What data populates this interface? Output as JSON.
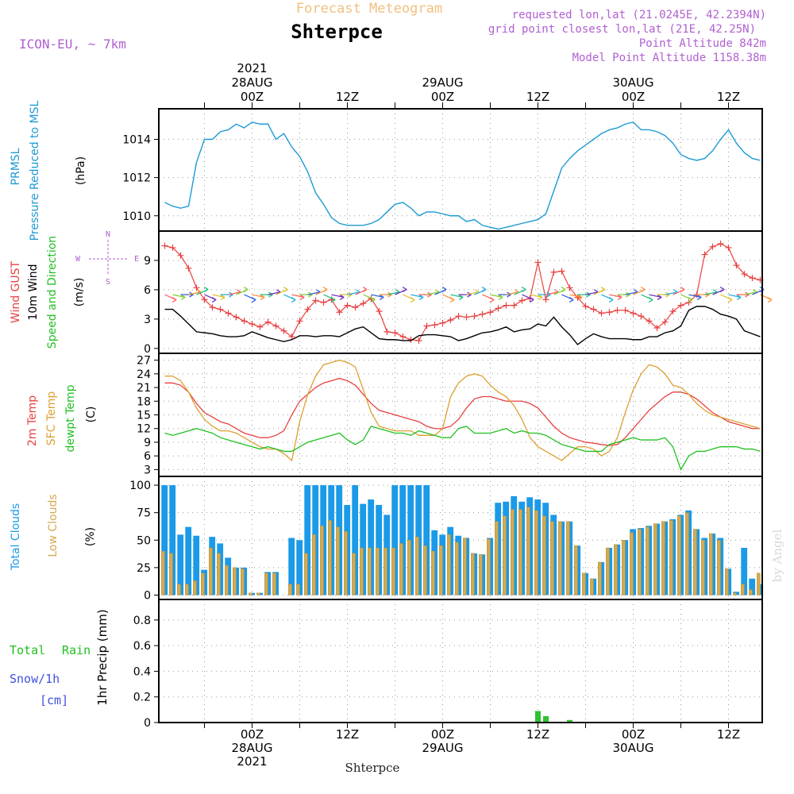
{
  "header": {
    "product": "Forecast Meteogram",
    "station": "Shterpce",
    "model": "ICON-EU, ~ 7km",
    "requested": "requested lon,lat (21.0245E, 42.2394N)",
    "grid_point": "grid point closest lon,lat (21E, 42.25N)",
    "point_alt": "Point Altitude 842m",
    "model_alt": "Model Point Altitude 1158.38m",
    "footer_station": "Shterpce",
    "watermark": "by Angel"
  },
  "colors": {
    "pressure": "#1e9ad6",
    "gust": "#e84040",
    "wind": "#000000",
    "t2m": "#e84040",
    "sfc": "#dca030",
    "dewpt": "#20c020",
    "total_clouds": "#1a9ae8",
    "low_clouds": "#d4aa50",
    "rain": "#30c030",
    "snow": "#4050e0",
    "label_purple": "#b060d0",
    "product": "#f0c080"
  },
  "time_axis": {
    "top_labels": [
      {
        "hour": 0,
        "lines": [
          "2021",
          "28AUG",
          "00Z"
        ]
      },
      {
        "hour": 12,
        "lines": [
          "12Z"
        ]
      },
      {
        "hour": 24,
        "lines": [
          "29AUG",
          "00Z"
        ]
      },
      {
        "hour": 36,
        "lines": [
          "12Z"
        ]
      },
      {
        "hour": 48,
        "lines": [
          "30AUG",
          "00Z"
        ]
      },
      {
        "hour": 60,
        "lines": [
          "12Z"
        ]
      }
    ],
    "bottom_labels": [
      {
        "hour": 0,
        "lines": [
          "00Z",
          "28AUG",
          "2021"
        ]
      },
      {
        "hour": 12,
        "lines": [
          "12Z"
        ]
      },
      {
        "hour": 24,
        "lines": [
          "00Z",
          "29AUG"
        ]
      },
      {
        "hour": 36,
        "lines": [
          "12Z"
        ]
      },
      {
        "hour": 48,
        "lines": [
          "00Z",
          "30AUG"
        ]
      },
      {
        "hour": 60,
        "lines": [
          "12Z"
        ]
      }
    ]
  },
  "panel_labels": {
    "pressure": [
      "PRMSL",
      "Pressure Reduced to MSL",
      "(hPa)"
    ],
    "wind": [
      "Wind GUST",
      "10m Wind",
      "Speed and Direction",
      "(m/s)"
    ],
    "compass": [
      "N",
      "E",
      "S",
      "W"
    ],
    "temp": [
      "2m Temp",
      "SFC Temp",
      "dewpt Temp",
      "(C)"
    ],
    "clouds": [
      "Total Clouds",
      "Low Clouds",
      "(%)"
    ],
    "precip": [
      "Total",
      "Rain",
      "Snow/1h",
      "[cm]",
      "1hr Precip (mm)"
    ]
  },
  "chart_data": [
    {
      "type": "line",
      "name": "PRMSL",
      "xlabel": "hour from 28AUG 00Z",
      "ylabel": "(hPa)",
      "ylim": [
        1009.2,
        1015.6
      ],
      "yticks": [
        1010,
        1012,
        1014
      ],
      "grid": true,
      "x": [
        -11,
        -10,
        -9,
        -8,
        -7,
        -6,
        -5,
        -4,
        -3,
        -2,
        -1,
        0,
        1,
        2,
        3,
        4,
        5,
        6,
        7,
        8,
        9,
        10,
        11,
        12,
        13,
        14,
        15,
        16,
        17,
        18,
        19,
        20,
        21,
        22,
        23,
        24,
        25,
        26,
        27,
        28,
        29,
        30,
        31,
        32,
        33,
        34,
        35,
        36,
        37,
        38,
        39,
        40,
        41,
        42,
        43,
        44,
        45,
        46,
        47,
        48,
        49,
        50,
        51,
        52,
        53,
        54,
        55,
        56,
        57,
        58,
        59,
        60,
        61,
        62,
        63,
        64
      ],
      "series": [
        {
          "values": [
            1010.7,
            1010.5,
            1010.4,
            1010.5,
            1012.8,
            1014.0,
            1014.0,
            1014.4,
            1014.5,
            1014.8,
            1014.6,
            1014.9,
            1014.8,
            1014.8,
            1014.0,
            1014.3,
            1013.6,
            1013.1,
            1012.3,
            1011.2,
            1010.6,
            1009.9,
            1009.6,
            1009.5,
            1009.5,
            1009.5,
            1009.6,
            1009.8,
            1010.2,
            1010.6,
            1010.7,
            1010.4,
            1010.0,
            1010.2,
            1010.2,
            1010.1,
            1010.0,
            1010.0,
            1009.7,
            1009.8,
            1009.5,
            1009.4,
            1009.3,
            1009.4,
            1009.5,
            1009.6,
            1009.7,
            1009.8,
            1010.1,
            1011.3,
            1012.5,
            1013.0,
            1013.4,
            1013.7,
            1014.0,
            1014.3,
            1014.5,
            1014.6,
            1014.8,
            1014.9,
            1014.5,
            1014.5,
            1014.4,
            1014.2,
            1013.8,
            1013.2,
            1013.0,
            1012.9,
            1013.0,
            1013.4,
            1014.0,
            1014.5,
            1013.8,
            1013.3,
            1013.0,
            1012.9
          ]
        }
      ]
    },
    {
      "type": "line",
      "name": "Wind",
      "ylabel": "(m/s)",
      "ylim": [
        -0.5,
        12.0
      ],
      "yticks": [
        0,
        3,
        6,
        9
      ],
      "grid": true,
      "x": [
        -11,
        -10,
        -9,
        -8,
        -7,
        -6,
        -5,
        -4,
        -3,
        -2,
        -1,
        0,
        1,
        2,
        3,
        4,
        5,
        6,
        7,
        8,
        9,
        10,
        11,
        12,
        13,
        14,
        15,
        16,
        17,
        18,
        19,
        20,
        21,
        22,
        23,
        24,
        25,
        26,
        27,
        28,
        29,
        30,
        31,
        32,
        33,
        34,
        35,
        36,
        37,
        38,
        39,
        40,
        41,
        42,
        43,
        44,
        45,
        46,
        47,
        48,
        49,
        50,
        51,
        52,
        53,
        54,
        55,
        56,
        57,
        58,
        59,
        60,
        61,
        62,
        63,
        64
      ],
      "series": [
        {
          "name": "Wind GUST",
          "values": [
            10.5,
            10.3,
            9.5,
            8.2,
            6.2,
            5.0,
            4.2,
            4.0,
            3.6,
            3.2,
            2.8,
            2.5,
            2.2,
            2.7,
            2.3,
            1.8,
            1.2,
            2.8,
            4.0,
            4.9,
            4.7,
            5.0,
            3.7,
            4.4,
            4.2,
            4.6,
            5.1,
            3.8,
            1.7,
            1.6,
            1.2,
            0.9,
            0.8,
            2.3,
            2.4,
            2.6,
            2.9,
            3.3,
            3.2,
            3.3,
            3.5,
            3.7,
            4.1,
            4.4,
            4.4,
            4.9,
            5.1,
            8.8,
            5.0,
            7.8,
            7.9,
            6.2,
            5.2,
            4.3,
            4.0,
            3.6,
            3.7,
            3.9,
            3.9,
            3.6,
            3.3,
            2.8,
            2.1,
            2.7,
            3.8,
            4.4,
            4.7,
            5.5,
            9.6,
            10.4,
            10.7,
            10.3,
            8.5,
            7.6,
            7.2,
            7.0
          ]
        },
        {
          "name": "10m Wind",
          "values": [
            4.0,
            4.0,
            3.3,
            2.5,
            1.7,
            1.6,
            1.5,
            1.3,
            1.2,
            1.2,
            1.3,
            1.7,
            1.4,
            1.1,
            0.9,
            0.7,
            0.9,
            1.3,
            1.3,
            1.2,
            1.3,
            1.3,
            1.2,
            1.6,
            2.0,
            2.2,
            1.6,
            1.0,
            0.9,
            0.9,
            0.8,
            0.8,
            1.3,
            1.4,
            1.4,
            1.3,
            1.2,
            0.8,
            1.0,
            1.3,
            1.6,
            1.7,
            1.9,
            2.2,
            1.7,
            1.9,
            2.0,
            2.5,
            2.3,
            3.2,
            2.2,
            1.4,
            0.4,
            1.0,
            1.5,
            1.2,
            1.0,
            1.0,
            1.0,
            0.9,
            0.9,
            1.2,
            1.2,
            1.6,
            1.8,
            2.3,
            3.9,
            4.3,
            4.3,
            4.0,
            3.5,
            3.3,
            3.0,
            1.8,
            1.5,
            1.2
          ]
        }
      ]
    },
    {
      "type": "line",
      "name": "Temperature",
      "ylabel": "(C)",
      "ylim": [
        1.5,
        28.5
      ],
      "yticks": [
        3,
        6,
        9,
        12,
        15,
        18,
        21,
        24,
        27
      ],
      "grid": true,
      "x": [
        -11,
        -10,
        -9,
        -8,
        -7,
        -6,
        -5,
        -4,
        -3,
        -2,
        -1,
        0,
        1,
        2,
        3,
        4,
        5,
        6,
        7,
        8,
        9,
        10,
        11,
        12,
        13,
        14,
        15,
        16,
        17,
        18,
        19,
        20,
        21,
        22,
        23,
        24,
        25,
        26,
        27,
        28,
        29,
        30,
        31,
        32,
        33,
        34,
        35,
        36,
        37,
        38,
        39,
        40,
        41,
        42,
        43,
        44,
        45,
        46,
        47,
        48,
        49,
        50,
        51,
        52,
        53,
        54,
        55,
        56,
        57,
        58,
        59,
        60,
        61,
        62,
        63,
        64
      ],
      "series": [
        {
          "name": "2m Temp",
          "values": [
            22.0,
            22.0,
            21.5,
            20.0,
            17.5,
            15.5,
            14.5,
            13.5,
            13.0,
            12.0,
            11.0,
            10.5,
            10.0,
            10.0,
            10.5,
            11.5,
            15.0,
            18.0,
            19.5,
            21.0,
            22.0,
            22.5,
            23.0,
            22.5,
            21.5,
            19.5,
            17.5,
            16.0,
            15.5,
            15.0,
            14.5,
            14.0,
            13.5,
            12.5,
            12.0,
            12.0,
            12.5,
            14.0,
            16.5,
            18.5,
            19.0,
            19.0,
            18.5,
            18.0,
            18.0,
            18.0,
            17.5,
            16.5,
            14.5,
            12.5,
            11.0,
            10.0,
            9.5,
            9.0,
            8.8,
            8.5,
            8.3,
            8.5,
            10.0,
            12.0,
            14.0,
            16.0,
            17.5,
            19.0,
            20.0,
            20.0,
            19.5,
            18.5,
            17.0,
            15.5,
            14.5,
            13.5,
            13.0,
            12.5,
            12.0,
            12.0
          ]
        },
        {
          "name": "SFC Temp",
          "values": [
            23.5,
            23.5,
            22.5,
            20.0,
            16.5,
            14.0,
            12.5,
            11.5,
            11.5,
            11.0,
            10.0,
            9.0,
            8.0,
            7.5,
            7.5,
            6.5,
            5.0,
            13.5,
            19.5,
            23.5,
            26.0,
            26.5,
            27.0,
            26.5,
            25.5,
            20.5,
            15.5,
            12.5,
            12.0,
            11.5,
            11.5,
            11.5,
            10.5,
            10.5,
            10.5,
            12.0,
            19.0,
            22.0,
            23.5,
            24.0,
            23.5,
            21.5,
            20.0,
            19.0,
            17.0,
            14.0,
            10.0,
            8.0,
            7.0,
            6.0,
            5.0,
            6.5,
            8.0,
            8.0,
            7.5,
            6.0,
            7.0,
            10.0,
            15.5,
            20.5,
            24.0,
            26.0,
            25.5,
            24.0,
            21.5,
            21.0,
            19.5,
            17.5,
            16.0,
            15.0,
            14.5,
            14.0,
            13.5,
            13.0,
            12.5,
            12.0
          ]
        },
        {
          "name": "dewpt Temp",
          "values": [
            11.0,
            10.5,
            11.0,
            11.5,
            12.0,
            11.5,
            11.0,
            10.0,
            9.5,
            9.0,
            8.5,
            8.0,
            7.5,
            8.0,
            7.5,
            7.0,
            7.0,
            8.0,
            9.0,
            9.5,
            10.0,
            10.5,
            11.0,
            9.5,
            8.5,
            9.5,
            12.5,
            12.0,
            11.5,
            11.0,
            11.0,
            10.5,
            11.5,
            11.0,
            10.5,
            10.0,
            10.0,
            12.0,
            12.5,
            11.0,
            11.0,
            11.0,
            11.5,
            12.0,
            11.0,
            11.5,
            11.0,
            11.0,
            10.5,
            9.5,
            8.5,
            8.0,
            7.5,
            7.0,
            7.0,
            7.0,
            8.5,
            9.0,
            9.5,
            10.0,
            9.5,
            9.5,
            9.5,
            10.0,
            8.0,
            3.0,
            6.0,
            7.0,
            7.0,
            7.5,
            8.0,
            8.0,
            8.0,
            7.5,
            7.5,
            7.0
          ]
        }
      ]
    },
    {
      "type": "bar",
      "name": "Clouds",
      "ylabel": "(%)",
      "ylim": [
        -4,
        108
      ],
      "yticks": [
        0,
        25,
        50,
        75,
        100
      ],
      "grid": true,
      "x": [
        -11,
        -10,
        -9,
        -8,
        -7,
        -6,
        -5,
        -4,
        -3,
        -2,
        -1,
        0,
        1,
        2,
        3,
        4,
        5,
        6,
        7,
        8,
        9,
        10,
        11,
        12,
        13,
        14,
        15,
        16,
        17,
        18,
        19,
        20,
        21,
        22,
        23,
        24,
        25,
        26,
        27,
        28,
        29,
        30,
        31,
        32,
        33,
        34,
        35,
        36,
        37,
        38,
        39,
        40,
        41,
        42,
        43,
        44,
        45,
        46,
        47,
        48,
        49,
        50,
        51,
        52,
        53,
        54,
        55,
        56,
        57,
        58,
        59,
        60,
        61,
        62,
        63,
        64
      ],
      "series": [
        {
          "name": "Total Clouds",
          "values": [
            100,
            100,
            55,
            62,
            54,
            23,
            53,
            47,
            34,
            25,
            25,
            2,
            2,
            21,
            21,
            0,
            52,
            50,
            100,
            100,
            100,
            100,
            100,
            82,
            100,
            83,
            87,
            82,
            73,
            100,
            100,
            100,
            100,
            100,
            59,
            55,
            62,
            54,
            52,
            38,
            37,
            52,
            84,
            85,
            90,
            85,
            89,
            87,
            84,
            73,
            67,
            67,
            45,
            20,
            15,
            30,
            43,
            46,
            50,
            60,
            61,
            63,
            65,
            67,
            69,
            73,
            77,
            60,
            52,
            56,
            52,
            24,
            3,
            43,
            15,
            10
          ]
        },
        {
          "name": "Low Clouds",
          "values": [
            40,
            38,
            10,
            10,
            13,
            20,
            43,
            38,
            27,
            25,
            24,
            2,
            2,
            20,
            20,
            0,
            10,
            10,
            38,
            55,
            63,
            68,
            62,
            58,
            38,
            43,
            43,
            43,
            43,
            43,
            47,
            50,
            53,
            45,
            40,
            45,
            55,
            48,
            52,
            38,
            37,
            51,
            67,
            72,
            78,
            78,
            80,
            77,
            72,
            67,
            67,
            67,
            45,
            20,
            15,
            30,
            43,
            46,
            50,
            57,
            60,
            62,
            65,
            67,
            68,
            72,
            75,
            60,
            50,
            56,
            50,
            24,
            2,
            10,
            5,
            20
          ]
        }
      ]
    },
    {
      "type": "bar",
      "name": "1hr Precip",
      "ylabel": "1hr Precip (mm)",
      "ylim": [
        0,
        0.96
      ],
      "yticks": [
        0,
        0.2,
        0.4,
        0.6,
        0.8
      ],
      "grid": true,
      "x": [
        14,
        36,
        37,
        40
      ],
      "series": [
        {
          "name": "Total Rain",
          "values": [
            0.005,
            0.09,
            0.05,
            0.02
          ]
        }
      ]
    }
  ]
}
